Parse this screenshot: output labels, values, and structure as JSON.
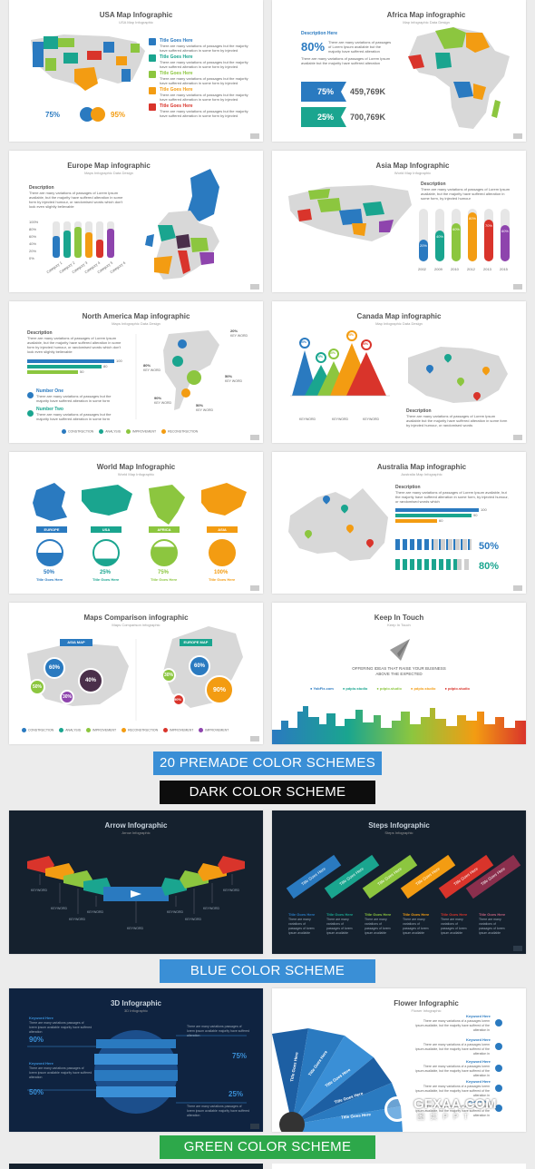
{
  "slides": {
    "usa": {
      "title": "USA Map Infographic",
      "sub": "USA Map Infographic",
      "p1": "75%",
      "p2": "95%",
      "items": [
        "Title Goes Here",
        "Title Goes Here",
        "Title Goes Here",
        "Title Goes Here",
        "Title Goes Here"
      ],
      "item_text": "There are many variations of passages but the majority have suffered alteration in some form by injected"
    },
    "africa": {
      "title": "Africa Map infographic",
      "sub": "Map infographic Data Design",
      "desc": "Description Here",
      "pct": "80%",
      "desc_text": "There are many variations of passages of Lorem Ipsum available but the majority have suffered alteration",
      "b1pct": "75%",
      "b1val": "459,769K",
      "b2pct": "25%",
      "b2val": "700,769K"
    },
    "europe": {
      "title": "Europe Map infographic",
      "sub": "Maps Infographic Data Design",
      "desc": "Description",
      "desc_text": "There are many variations of passages of Lorem Ipsum available, but the majority have suffered alteration in some form by injected humour, or randomised words which don't look even slightly believable",
      "ticks": [
        "100%",
        "80%",
        "60%",
        "40%",
        "20%",
        "0%"
      ],
      "cats": [
        "Category 1",
        "Category 2",
        "Category 3",
        "Category 4",
        "Category 5",
        "Category 6"
      ]
    },
    "asia": {
      "title": "Asia Map Infographic",
      "sub": "World Map Infographic",
      "desc": "Description",
      "desc_text": "There are many variations of passages of Lorem Ipsum available, but the majority have suffered alteration in some form, by injected humour",
      "bars": [
        "20%",
        "40%",
        "60%",
        "80%",
        "70%",
        "60%"
      ],
      "years": [
        "2002",
        "2009",
        "2010",
        "2012",
        "2013",
        "2015"
      ]
    },
    "northamerica": {
      "title": "North America Map infographic",
      "sub": "Maps Infographic Data Design",
      "desc": "Description",
      "desc_text": "There are many variations of passages of Lorem Ipsum available, but the majority have suffered alteration in some form by injected humour, or randomised words which don't look even slightly believable",
      "bars": [
        "100",
        "80",
        "50"
      ],
      "n1": "Number One",
      "n2": "Number Two",
      "n_text": "There are many variations of passages but the majority have suffered alteration in some form",
      "kw": [
        "20%",
        "KEY WORD",
        "80%",
        "KEY WORD",
        "50%",
        "KEY WORD",
        "90%",
        "KEY WORD",
        "50%",
        "KEY WORD"
      ],
      "legend": [
        "CONSTRUCTION",
        "ANALYSIS",
        "IMPROVEMENT",
        "RECONSTRUCTION"
      ]
    },
    "canada": {
      "title": "Canada Map infographic",
      "sub": "Map Infographic Data Design",
      "pins": [
        "90%",
        "70%",
        "95%",
        "80%",
        "90%"
      ],
      "kw": [
        "KEYWORD",
        "KEYWORD",
        "KEYWORD"
      ],
      "desc": "Description",
      "desc_text": "There are many variations of passages of Lorem Ipsum available but the majority have suffered alteration in some form by injected humour, or randomised words"
    },
    "world": {
      "title": "World Map Infographic",
      "sub": "World Map Infographic",
      "regions": [
        "EUROPE",
        "USA",
        "AFRICA",
        "ASIA"
      ],
      "pcts": [
        "50%",
        "25%",
        "75%",
        "100%"
      ],
      "caps": [
        "Title Goes Here",
        "Title Goes Here",
        "Title Goes Here",
        "Title Goes Here"
      ]
    },
    "australia": {
      "title": "Australia Map infographic",
      "sub": "Australia Map Infographic",
      "desc": "Description",
      "desc_text": "There are many variations of passages of Lorem Ipsum available, but the majority have suffered alteration in some form, by injected humour, or randomised words which",
      "bars": [
        "100",
        "90",
        "60"
      ],
      "p1": "50%",
      "p2": "80%"
    },
    "comparison": {
      "title": "Maps Comparison infographic",
      "sub": "Maps Comparison infographic",
      "asia": "ASIA MAP",
      "europe": "EUROPE MAP",
      "a_pcts": [
        "60%",
        "40%",
        "50%",
        "30%"
      ],
      "e_pcts": [
        "60%",
        "30%",
        "90%",
        "90%"
      ],
      "legend": [
        "CONSTRUCTION",
        "ANALYSIS",
        "IMPROVEMENT",
        "RECONSTRUCTION",
        "IMPROVEMENT",
        "IMPROVEMENT"
      ]
    },
    "touch": {
      "title": "Keep In Touch",
      "sub": "Keep In Touch",
      "tag1": "OFFERING IDEAS THAT RAISE YOUR BUSINESS",
      "tag2": "ABOVE THE EXPECTED",
      "links": [
        "YobFix.com",
        "pdpio.studio",
        "pdpio.studio",
        "pdpio.studio",
        "pdpio.studio"
      ]
    },
    "arrow": {
      "title": "Arrow Infographic",
      "sub": "Arrow Infographic",
      "kw": [
        "KEYWORD",
        "KEYWORD",
        "KEYWORD",
        "KEYWORD",
        "KEYWORD",
        "KEYWORD",
        "KEYWORD",
        "KEYWORD",
        "KEYWORD"
      ]
    },
    "steps": {
      "title": "Steps Infographic",
      "sub": "Steps Infographic",
      "step": "Title Goes Here",
      "caps": [
        "Title Goes Here",
        "Title Goes Here",
        "Title Goes Here",
        "Title Goes Here",
        "Title Goes Here",
        "Title Goes Here"
      ],
      "cap_text": "There are many variations of passages of lorem ipsum available"
    },
    "d3": {
      "title": "3D Infographic",
      "sub": "3D Infographic",
      "kw": "Keyword Here",
      "p1": "90%",
      "p2": "75%",
      "p3": "50%",
      "p4": "25%",
      "kw_text": "There are many variations passages of lorem ipsum available majority have suffered alteration"
    },
    "flower": {
      "title": "Flower Infographic",
      "sub": "Flower Infographic",
      "petal": "Title Goes Here",
      "kw": "Keyword Here",
      "kw_text": "There are many variations of a passages lorem ipsum available, but the majority have suffered of the alteration in"
    }
  },
  "banners": {
    "premade": "20 PREMADE COLOR SCHEMES",
    "dark": "DARK COLOR SCHEME",
    "blue": "BLUE COLOR SCHEME",
    "green": "GREEN COLOR SCHEME"
  },
  "watermark": {
    "brand": "GFXAA.COM",
    "sub": "图 实 P P T"
  },
  "colors": {
    "blue": "#2a7ac0",
    "teal": "#1aa58f",
    "green": "#8cc63f",
    "orange": "#f39c12",
    "red": "#d9342b",
    "purple": "#8e44ad"
  }
}
